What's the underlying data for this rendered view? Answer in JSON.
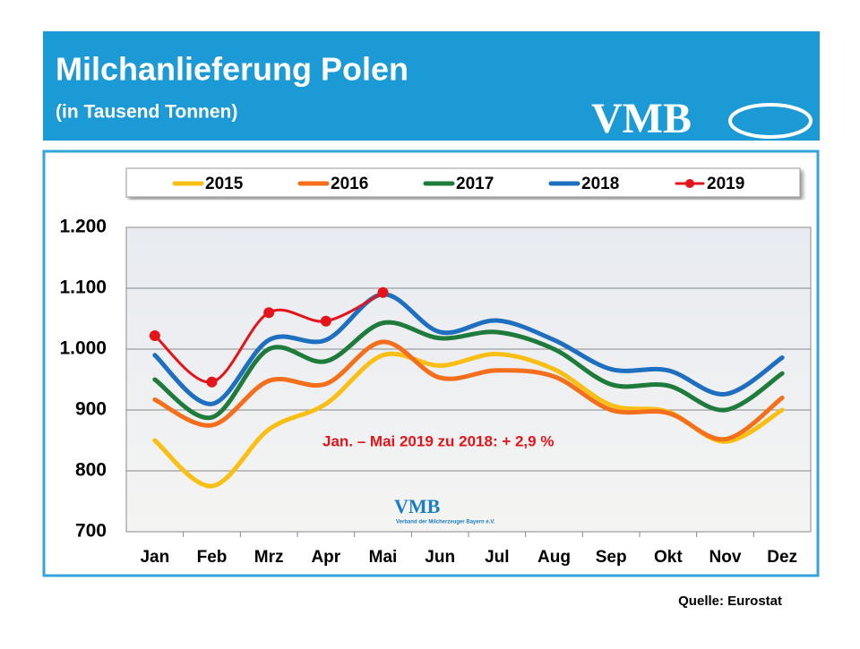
{
  "chart_data": {
    "type": "line",
    "title": "Milchanlieferung Polen",
    "subtitle": "(in Tausend Tonnen)",
    "logo": "VMB",
    "watermark": "VMB",
    "watermark_subtitle": "Verband der Milcherzeuger Bayern e.V.",
    "annotation": "Jan. – Mai 2019 zu 2018: + 2,9 %",
    "source": "Quelle: Eurostat",
    "categories": [
      "Jan",
      "Feb",
      "Mrz",
      "Apr",
      "Mai",
      "Jun",
      "Jul",
      "Aug",
      "Sep",
      "Okt",
      "Nov",
      "Dez"
    ],
    "series": [
      {
        "name": "2015",
        "color": "#f9bf15",
        "values": [
          850,
          775,
          868,
          910,
          990,
          973,
          992,
          967,
          908,
          897,
          848,
          900
        ]
      },
      {
        "name": "2016",
        "color": "#f46f1b",
        "values": [
          917,
          875,
          948,
          943,
          1012,
          953,
          965,
          955,
          900,
          895,
          852,
          920
        ]
      },
      {
        "name": "2017",
        "color": "#1e7b3c",
        "values": [
          950,
          888,
          1000,
          980,
          1043,
          1018,
          1028,
          1000,
          942,
          940,
          900,
          960
        ]
      },
      {
        "name": "2018",
        "color": "#1f6fc1",
        "values": [
          990,
          910,
          1015,
          1015,
          1090,
          1028,
          1047,
          1015,
          967,
          965,
          926,
          986
        ]
      },
      {
        "name": "2019",
        "color": "#e3151b",
        "values": [
          1022,
          946,
          1060,
          1046,
          1093,
          null,
          null,
          null,
          null,
          null,
          null,
          null
        ],
        "markers": true
      }
    ],
    "ylim": [
      700,
      1200
    ],
    "yticks": [
      {
        "value": 700,
        "label": "700"
      },
      {
        "value": 800,
        "label": "800"
      },
      {
        "value": 900,
        "label": "900"
      },
      {
        "value": 1000,
        "label": "1.000"
      },
      {
        "value": 1100,
        "label": "1.100"
      },
      {
        "value": 1200,
        "label": "1.200"
      }
    ],
    "grid": true,
    "legend": "top"
  }
}
